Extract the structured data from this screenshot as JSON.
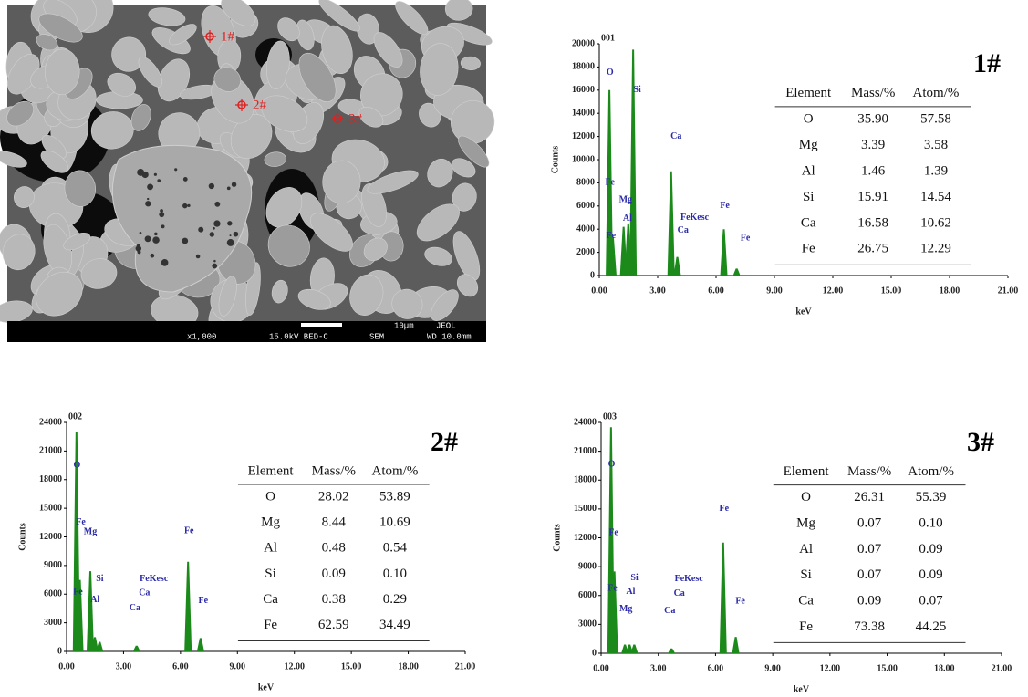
{
  "image": {
    "labels": [
      "1#",
      "2#",
      "3#"
    ],
    "scale": "10µm",
    "maker": "JEOL",
    "footer": [
      "x1,000",
      "15.0kV BED-C",
      "SEM",
      "WD 10.0mm"
    ]
  },
  "chart_data": [
    {
      "type": "spectrum",
      "id_label": "001",
      "sample": "1#",
      "y_label": "Counts",
      "x_label": "keV",
      "color": "#1b8a1b",
      "xlim": [
        0,
        21
      ],
      "ylim": [
        0,
        20000
      ],
      "xticks": [
        {
          "value": 0,
          "label": "0.00"
        },
        {
          "value": 3,
          "label": "3.00"
        },
        {
          "value": 6,
          "label": "6.00"
        },
        {
          "value": 9,
          "label": "9.00"
        },
        {
          "value": 12,
          "label": "12.00"
        },
        {
          "value": 15,
          "label": "15.00"
        },
        {
          "value": 18,
          "label": "18.00"
        },
        {
          "value": 21,
          "label": "21.00"
        }
      ],
      "yticks": [
        0,
        2000,
        4000,
        6000,
        8000,
        10000,
        12000,
        14000,
        16000,
        18000,
        20000
      ],
      "peaks": {
        "x": [
          0.52,
          0.7,
          1.25,
          1.49,
          1.74,
          3.69,
          4.01,
          6.4,
          7.06
        ],
        "values": [
          16000,
          3300,
          4200,
          4500,
          19500,
          9000,
          1600,
          4000,
          600
        ]
      },
      "annotations": [
        {
          "text": "O",
          "x": 0.55,
          "y": 17500
        },
        {
          "text": "Si",
          "x": 1.95,
          "y": 16000
        },
        {
          "text": "Ca",
          "x": 3.95,
          "y": 12000
        },
        {
          "text": "Fe",
          "x": 0.55,
          "y": 8000
        },
        {
          "text": "Mg",
          "x": 1.35,
          "y": 6500
        },
        {
          "text": "Al",
          "x": 1.45,
          "y": 4900
        },
        {
          "text": "Fe",
          "x": 0.6,
          "y": 3400
        },
        {
          "text": "FeKesc",
          "x": 4.9,
          "y": 5000
        },
        {
          "text": "Ca",
          "x": 4.3,
          "y": 3900
        },
        {
          "text": "Fe",
          "x": 6.45,
          "y": 6000
        },
        {
          "text": "Fe",
          "x": 7.5,
          "y": 3200
        }
      ],
      "table": {
        "columns": [
          "Element",
          "Mass/%",
          "Atom/%"
        ],
        "rows": [
          [
            "O",
            "35.90",
            "57.58"
          ],
          [
            "Mg",
            "3.39",
            "3.58"
          ],
          [
            "Al",
            "1.46",
            "1.39"
          ],
          [
            "Si",
            "15.91",
            "14.54"
          ],
          [
            "Ca",
            "16.58",
            "10.62"
          ],
          [
            "Fe",
            "26.75",
            "12.29"
          ]
        ]
      }
    },
    {
      "type": "spectrum",
      "id_label": "002",
      "sample": "2#",
      "y_label": "Counts",
      "x_label": "keV",
      "color": "#1b8a1b",
      "xlim": [
        0,
        21
      ],
      "ylim": [
        0,
        24000
      ],
      "xticks": [
        {
          "value": 0,
          "label": "0.00"
        },
        {
          "value": 3,
          "label": "3.00"
        },
        {
          "value": 6,
          "label": "6.00"
        },
        {
          "value": 9,
          "label": "9.00"
        },
        {
          "value": 12,
          "label": "12.00"
        },
        {
          "value": 15,
          "label": "15.00"
        },
        {
          "value": 18,
          "label": "18.00"
        },
        {
          "value": 21,
          "label": "21.00"
        }
      ],
      "yticks": [
        0,
        3000,
        6000,
        9000,
        12000,
        15000,
        18000,
        21000,
        24000
      ],
      "peaks": {
        "x": [
          0.52,
          0.7,
          1.25,
          1.49,
          1.74,
          3.69,
          6.4,
          7.06
        ],
        "values": [
          23000,
          7500,
          8400,
          1500,
          1000,
          600,
          9400,
          1400
        ]
      },
      "annotations": [
        {
          "text": "O",
          "x": 0.55,
          "y": 19500
        },
        {
          "text": "Fe",
          "x": 0.75,
          "y": 13500
        },
        {
          "text": "Mg",
          "x": 1.25,
          "y": 12500
        },
        {
          "text": "Fe",
          "x": 0.6,
          "y": 6200
        },
        {
          "text": "Si",
          "x": 1.75,
          "y": 7600
        },
        {
          "text": "Al",
          "x": 1.5,
          "y": 5400
        },
        {
          "text": "FeKesc",
          "x": 4.6,
          "y": 7600
        },
        {
          "text": "Ca",
          "x": 4.1,
          "y": 6100
        },
        {
          "text": "Ca",
          "x": 3.6,
          "y": 4500
        },
        {
          "text": "Fe",
          "x": 6.45,
          "y": 12600
        },
        {
          "text": "Fe",
          "x": 7.2,
          "y": 5300
        }
      ],
      "table": {
        "columns": [
          "Element",
          "Mass/%",
          "Atom/%"
        ],
        "rows": [
          [
            "O",
            "28.02",
            "53.89"
          ],
          [
            "Mg",
            "8.44",
            "10.69"
          ],
          [
            "Al",
            "0.48",
            "0.54"
          ],
          [
            "Si",
            "0.09",
            "0.10"
          ],
          [
            "Ca",
            "0.38",
            "0.29"
          ],
          [
            "Fe",
            "62.59",
            "34.49"
          ]
        ]
      }
    },
    {
      "type": "spectrum",
      "id_label": "003",
      "sample": "3#",
      "y_label": "Counts",
      "x_label": "keV",
      "color": "#1b8a1b",
      "xlim": [
        0,
        21
      ],
      "ylim": [
        0,
        24000
      ],
      "xticks": [
        {
          "value": 0,
          "label": "0.00"
        },
        {
          "value": 3,
          "label": "3.00"
        },
        {
          "value": 6,
          "label": "6.00"
        },
        {
          "value": 9,
          "label": "9.00"
        },
        {
          "value": 12,
          "label": "12.00"
        },
        {
          "value": 15,
          "label": "15.00"
        },
        {
          "value": 18,
          "label": "18.00"
        },
        {
          "value": 21,
          "label": "21.00"
        }
      ],
      "yticks": [
        0,
        3000,
        6000,
        9000,
        12000,
        15000,
        18000,
        21000,
        24000
      ],
      "peaks": {
        "x": [
          0.52,
          0.7,
          1.25,
          1.49,
          1.74,
          3.69,
          6.4,
          7.06
        ],
        "values": [
          23500,
          8500,
          900,
          900,
          900,
          500,
          11500,
          1700
        ]
      },
      "annotations": [
        {
          "text": "O",
          "x": 0.55,
          "y": 19600
        },
        {
          "text": "Fe",
          "x": 0.65,
          "y": 12500
        },
        {
          "text": "Fe",
          "x": 0.6,
          "y": 6700
        },
        {
          "text": "Si",
          "x": 1.75,
          "y": 7800
        },
        {
          "text": "Al",
          "x": 1.55,
          "y": 6400
        },
        {
          "text": "Mg",
          "x": 1.3,
          "y": 4600
        },
        {
          "text": "FeKesc",
          "x": 4.6,
          "y": 7700
        },
        {
          "text": "Ca",
          "x": 4.1,
          "y": 6200
        },
        {
          "text": "Ca",
          "x": 3.6,
          "y": 4400
        },
        {
          "text": "Fe",
          "x": 6.45,
          "y": 15000
        },
        {
          "text": "Fe",
          "x": 7.3,
          "y": 5400
        }
      ],
      "table": {
        "columns": [
          "Element",
          "Mass/%",
          "Atom/%"
        ],
        "rows": [
          [
            "O",
            "26.31",
            "55.39"
          ],
          [
            "Mg",
            "0.07",
            "0.10"
          ],
          [
            "Al",
            "0.07",
            "0.09"
          ],
          [
            "Si",
            "0.07",
            "0.09"
          ],
          [
            "Ca",
            "0.09",
            "0.07"
          ],
          [
            "Fe",
            "73.38",
            "44.25"
          ]
        ]
      }
    }
  ]
}
